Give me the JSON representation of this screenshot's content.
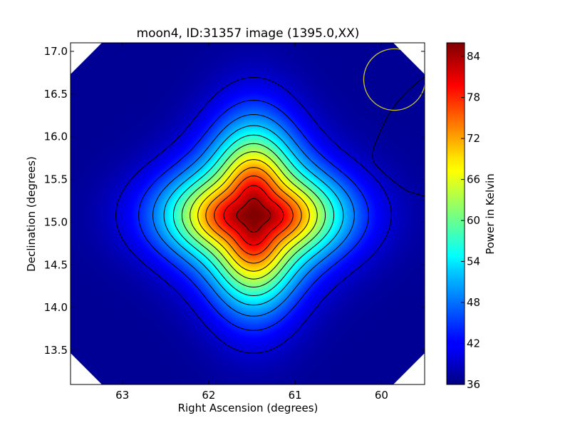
{
  "chart_data": {
    "type": "heatmap",
    "title": "moon4, ID:31357 image (1395.0,XX)",
    "xlabel": "Right Ascension (degrees)",
    "ylabel": "Declination (degrees)",
    "xlim": [
      63.6,
      59.5
    ],
    "ylim": [
      13.1,
      17.1
    ],
    "x_ticks": [
      63,
      62,
      61,
      60
    ],
    "y_ticks": [
      13.5,
      14.0,
      14.5,
      15.0,
      15.5,
      16.0,
      16.5,
      17.0
    ],
    "x_tick_labels": [
      "63",
      "62",
      "61",
      "60"
    ],
    "y_tick_labels": [
      "13.5",
      "14.0",
      "14.5",
      "15.0",
      "15.5",
      "16.0",
      "16.5",
      "17.0"
    ],
    "colorbar": {
      "label": "Power in Kelvin",
      "colormap": "jet",
      "range": [
        36,
        86
      ],
      "ticks": [
        36,
        42,
        48,
        54,
        60,
        66,
        72,
        78,
        84
      ],
      "tick_labels": [
        "36",
        "42",
        "48",
        "54",
        "60",
        "66",
        "72",
        "78",
        "84"
      ]
    },
    "source": {
      "center_ra": 61.48,
      "center_dec": 15.08,
      "peak_power": 86,
      "background_power": 37
    },
    "contour_levels": [
      40,
      44,
      48,
      52,
      56,
      60,
      64,
      68,
      72,
      76,
      80,
      84
    ],
    "circle_marker": {
      "center_ra": 59.85,
      "center_dec": 16.67,
      "radius_deg": 0.36,
      "color": "#c8c832"
    },
    "colors": {
      "contour": "#000000",
      "blank_corner": "#ffffff"
    }
  }
}
